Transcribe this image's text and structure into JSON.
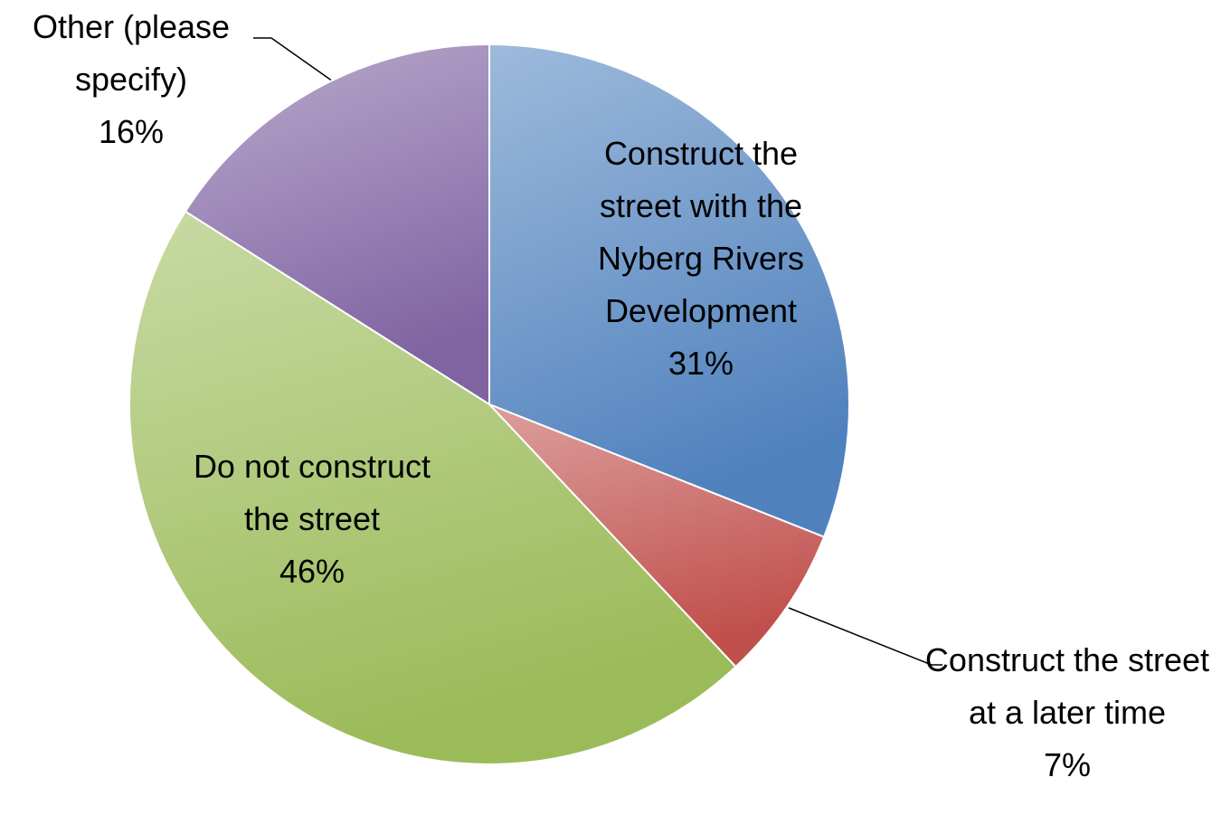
{
  "chart_data": {
    "type": "pie",
    "categories": [
      "Construct the street with the Nyberg Rivers Development",
      "Construct the street at a later time",
      "Do not construct the street",
      "Other (please specify)"
    ],
    "values": [
      31,
      7,
      46,
      16
    ],
    "value_labels": [
      "31%",
      "7%",
      "46%",
      "16%"
    ],
    "colors": [
      "#4f81bd",
      "#c0504d",
      "#9bbb59",
      "#8064a2"
    ]
  }
}
